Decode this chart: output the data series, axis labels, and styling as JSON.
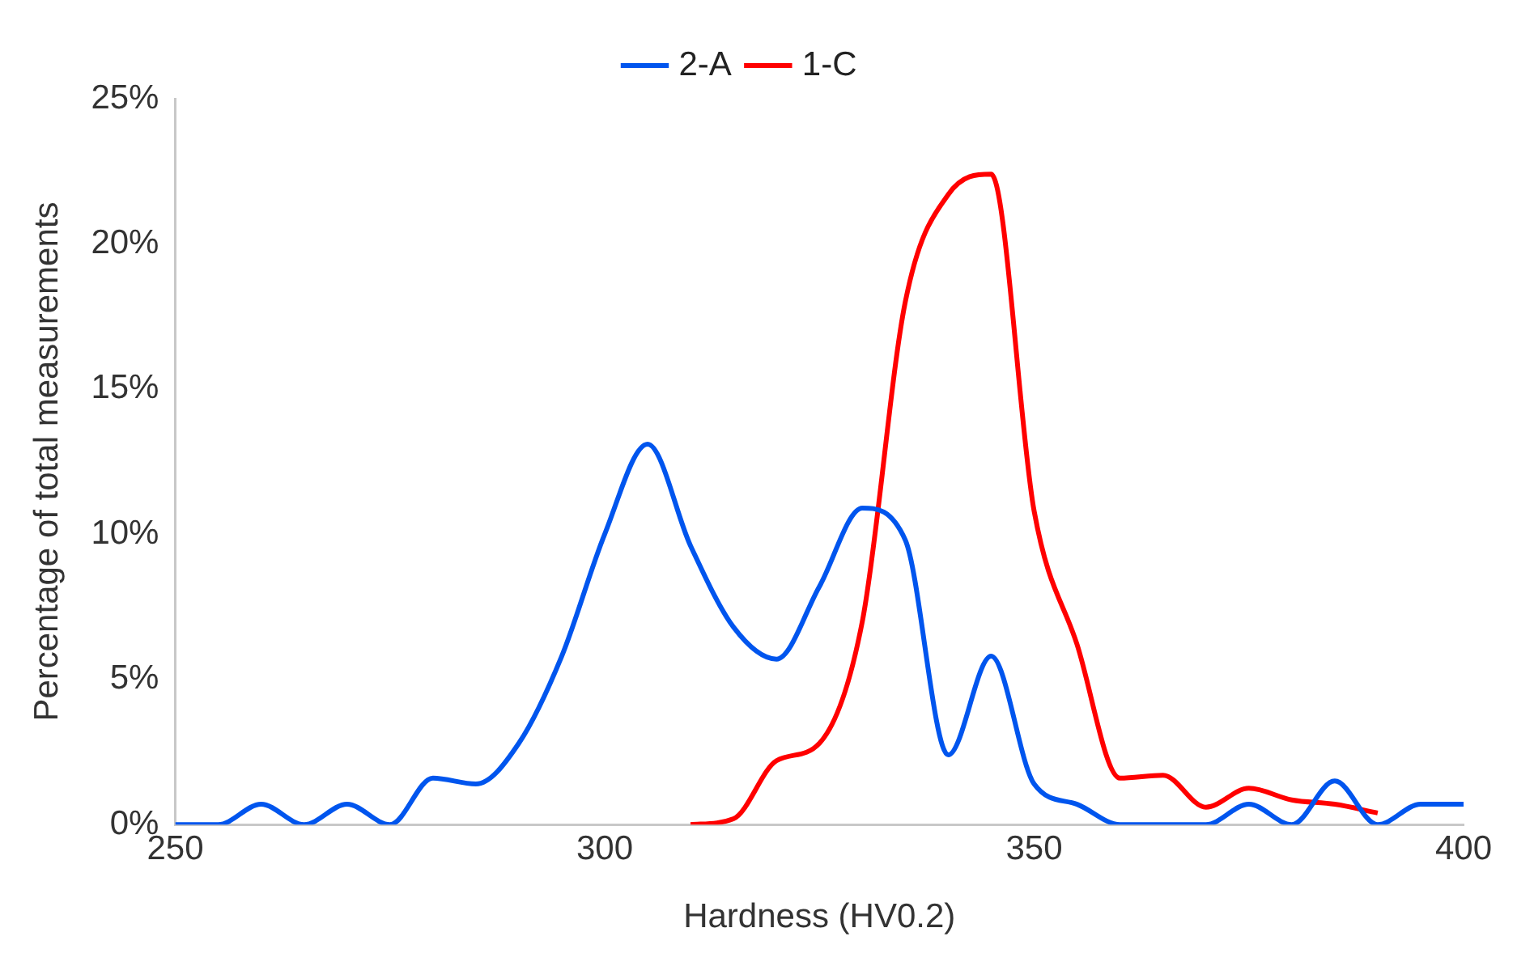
{
  "chart_data": {
    "type": "line",
    "xlabel": "Hardness (HV0.2)",
    "ylabel": "Percentage of total measurements",
    "xlim": [
      250,
      400
    ],
    "xticks": [
      250,
      300,
      350,
      400
    ],
    "ylim": [
      0,
      25
    ],
    "yticks": [
      {
        "value": 0,
        "label": "0%"
      },
      {
        "value": 5,
        "label": "5%"
      },
      {
        "value": 10,
        "label": "10%"
      },
      {
        "value": 15,
        "label": "15%"
      },
      {
        "value": 20,
        "label": "20%"
      },
      {
        "value": 25,
        "label": "25%"
      }
    ],
    "grid": false,
    "legend": "top",
    "marker": "none",
    "line_style": "solid",
    "series": [
      {
        "name": "2-A",
        "color": "#0055ee",
        "x": [
          250,
          255,
          260,
          265,
          270,
          275,
          280,
          285,
          290,
          295,
          300,
          305,
          310,
          315,
          320,
          325,
          330,
          335,
          340,
          345,
          350,
          355,
          360,
          365,
          370,
          375,
          380,
          385,
          390,
          395,
          400
        ],
        "values": [
          0,
          0,
          0.7,
          0,
          0.7,
          0,
          1.6,
          1.4,
          2.8,
          5.8,
          10,
          13.1,
          9.6,
          6.8,
          5.7,
          8.2,
          10.9,
          9.8,
          2.4,
          5.8,
          1.4,
          0.7,
          0,
          0,
          0,
          0.7,
          0,
          1.5,
          0,
          0.7,
          0.7
        ]
      },
      {
        "name": "1-C",
        "color": "#ff0000",
        "x": [
          310,
          315,
          320,
          325,
          330,
          335,
          340,
          345,
          350,
          355,
          360,
          365,
          370,
          375,
          380,
          385,
          390
        ],
        "values": [
          0,
          0.2,
          2.2,
          2.8,
          7,
          18,
          21.7,
          22.4,
          10.8,
          6.2,
          1.6,
          1.7,
          0.6,
          1.25,
          0.85,
          0.7,
          0.4
        ]
      }
    ]
  }
}
